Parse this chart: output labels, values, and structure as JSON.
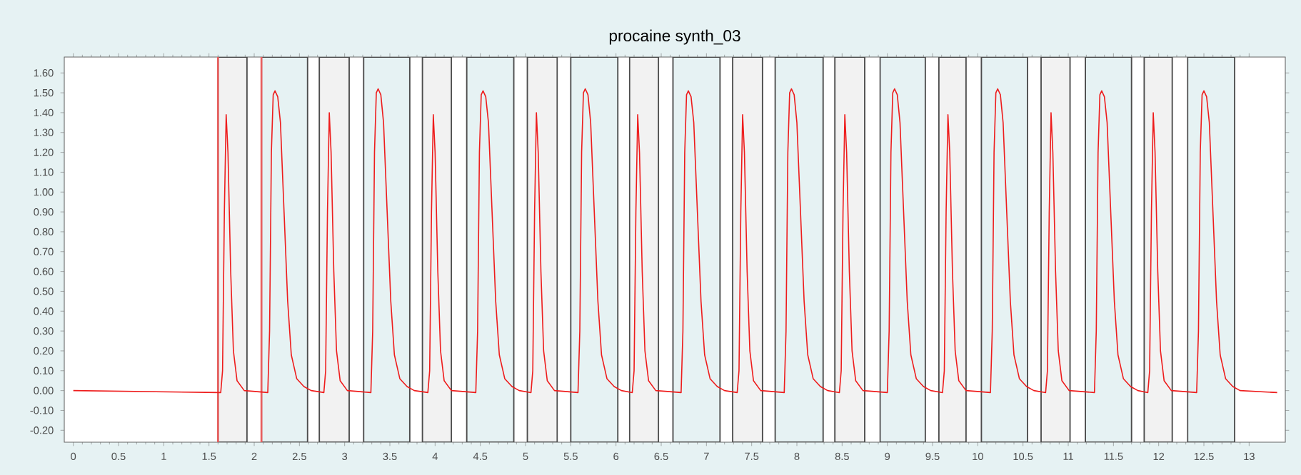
{
  "chart_data": {
    "type": "line",
    "title": "procaine synth_03",
    "xlim": [
      -0.1,
      13.4
    ],
    "ylim": [
      -0.26,
      1.68
    ],
    "xticks": [
      0,
      0.5,
      1,
      1.5,
      2,
      2.5,
      3,
      3.5,
      4,
      4.5,
      5,
      5.5,
      6,
      6.5,
      7,
      7.5,
      8,
      8.5,
      9,
      9.5,
      10,
      10.5,
      11,
      11.5,
      12,
      12.5,
      13
    ],
    "yticks": [
      {
        "value": -0.2,
        "label": "-0.20"
      },
      {
        "value": -0.1,
        "label": "-0.10"
      },
      {
        "value": 0,
        "label": "0.00"
      },
      {
        "value": 0.1,
        "label": "0.10"
      },
      {
        "value": 0.2,
        "label": "0.20"
      },
      {
        "value": 0.3,
        "label": "0.30"
      },
      {
        "value": 0.4,
        "label": "0.40"
      },
      {
        "value": 0.5,
        "label": "0.50"
      },
      {
        "value": 0.6,
        "label": "0.60"
      },
      {
        "value": 0.7,
        "label": "0.70"
      },
      {
        "value": 0.8,
        "label": "0.80"
      },
      {
        "value": 0.9,
        "label": "0.90"
      },
      {
        "value": 1.0,
        "label": "1.00"
      },
      {
        "value": 1.1,
        "label": "1.10"
      },
      {
        "value": 1.2,
        "label": "1.20"
      },
      {
        "value": 1.3,
        "label": "1.30"
      },
      {
        "value": 1.4,
        "label": "1.40"
      },
      {
        "value": 1.5,
        "label": "1.50"
      },
      {
        "value": 1.6,
        "label": "1.60"
      }
    ],
    "bands": [
      {
        "axis": "x",
        "from": 1.6,
        "to": 1.92,
        "color": "#f2f2f2"
      },
      {
        "axis": "x",
        "from": 2.08,
        "to": 2.59,
        "color": "#e6f2f3"
      },
      {
        "axis": "x",
        "from": 2.72,
        "to": 3.05,
        "color": "#f2f2f2"
      },
      {
        "axis": "x",
        "from": 3.21,
        "to": 3.72,
        "color": "#e6f2f3"
      },
      {
        "axis": "x",
        "from": 3.86,
        "to": 4.18,
        "color": "#f2f2f2"
      },
      {
        "axis": "x",
        "from": 4.35,
        "to": 4.87,
        "color": "#e6f2f3"
      },
      {
        "axis": "x",
        "from": 5.02,
        "to": 5.35,
        "color": "#f2f2f2"
      },
      {
        "axis": "x",
        "from": 5.5,
        "to": 6.02,
        "color": "#e6f2f3"
      },
      {
        "axis": "x",
        "from": 6.15,
        "to": 6.47,
        "color": "#f2f2f2"
      },
      {
        "axis": "x",
        "from": 6.63,
        "to": 7.15,
        "color": "#e6f2f3"
      },
      {
        "axis": "x",
        "from": 7.29,
        "to": 7.62,
        "color": "#f2f2f2"
      },
      {
        "axis": "x",
        "from": 7.76,
        "to": 8.29,
        "color": "#e6f2f3"
      },
      {
        "axis": "x",
        "from": 8.42,
        "to": 8.75,
        "color": "#f2f2f2"
      },
      {
        "axis": "x",
        "from": 8.92,
        "to": 9.42,
        "color": "#e6f2f3"
      },
      {
        "axis": "x",
        "from": 9.57,
        "to": 9.87,
        "color": "#f2f2f2"
      },
      {
        "axis": "x",
        "from": 10.04,
        "to": 10.55,
        "color": "#e6f2f3"
      },
      {
        "axis": "x",
        "from": 10.7,
        "to": 11.02,
        "color": "#f2f2f2"
      },
      {
        "axis": "x",
        "from": 11.19,
        "to": 11.7,
        "color": "#e6f2f3"
      },
      {
        "axis": "x",
        "from": 11.84,
        "to": 12.15,
        "color": "#f2f2f2"
      },
      {
        "axis": "x",
        "from": 12.32,
        "to": 12.84,
        "color": "#e6f2f3"
      }
    ],
    "ref_lines": [
      {
        "axis": "x",
        "value": 1.6,
        "color": "#e8605f"
      },
      {
        "axis": "x",
        "value": 2.08,
        "color": "#e8605f"
      }
    ],
    "series": [
      {
        "color": "#ee1c1c",
        "line_style": "solid",
        "x": [
          0,
          1.6,
          1.63,
          1.65,
          1.67,
          1.69,
          1.71,
          1.74,
          1.77,
          1.81,
          1.89,
          2.15,
          2.17,
          2.19,
          2.21,
          2.23,
          2.26,
          2.29,
          2.33,
          2.37,
          2.41,
          2.47,
          2.55,
          2.63,
          2.77,
          2.79,
          2.81,
          2.83,
          2.85,
          2.88,
          2.91,
          2.95,
          3.03,
          3.29,
          3.31,
          3.33,
          3.35,
          3.37,
          3.4,
          3.43,
          3.47,
          3.51,
          3.55,
          3.61,
          3.69,
          3.77,
          3.92,
          3.94,
          3.96,
          3.98,
          4.0,
          4.03,
          4.06,
          4.1,
          4.18,
          4.45,
          4.47,
          4.49,
          4.51,
          4.53,
          4.56,
          4.59,
          4.63,
          4.67,
          4.71,
          4.77,
          4.85,
          4.93,
          5.06,
          5.08,
          5.1,
          5.12,
          5.14,
          5.17,
          5.2,
          5.24,
          5.32,
          5.58,
          5.6,
          5.62,
          5.64,
          5.66,
          5.69,
          5.72,
          5.76,
          5.8,
          5.84,
          5.9,
          5.98,
          6.06,
          6.18,
          6.2,
          6.22,
          6.24,
          6.26,
          6.29,
          6.32,
          6.36,
          6.44,
          6.72,
          6.74,
          6.76,
          6.78,
          6.8,
          6.83,
          6.86,
          6.9,
          6.94,
          6.98,
          7.04,
          7.12,
          7.2,
          7.34,
          7.36,
          7.38,
          7.4,
          7.42,
          7.45,
          7.48,
          7.52,
          7.6,
          7.86,
          7.88,
          7.9,
          7.92,
          7.94,
          7.97,
          8.0,
          8.04,
          8.08,
          8.12,
          8.18,
          8.26,
          8.34,
          8.47,
          8.49,
          8.51,
          8.53,
          8.55,
          8.58,
          8.61,
          8.65,
          8.73,
          9.0,
          9.02,
          9.04,
          9.06,
          9.08,
          9.11,
          9.14,
          9.18,
          9.22,
          9.26,
          9.32,
          9.4,
          9.48,
          9.61,
          9.63,
          9.65,
          9.67,
          9.69,
          9.72,
          9.75,
          9.79,
          9.87,
          10.14,
          10.16,
          10.18,
          10.2,
          10.22,
          10.25,
          10.28,
          10.32,
          10.36,
          10.4,
          10.46,
          10.54,
          10.62,
          10.75,
          10.77,
          10.79,
          10.81,
          10.83,
          10.86,
          10.89,
          10.93,
          11.01,
          11.29,
          11.31,
          11.33,
          11.35,
          11.37,
          11.4,
          11.43,
          11.47,
          11.51,
          11.55,
          11.61,
          11.69,
          11.77,
          11.88,
          11.9,
          11.92,
          11.94,
          11.96,
          11.99,
          12.02,
          12.06,
          12.14,
          12.42,
          12.44,
          12.46,
          12.48,
          12.5,
          12.53,
          12.56,
          12.6,
          12.64,
          12.68,
          12.74,
          12.82,
          12.9,
          13.31
        ],
        "values": [
          0.0,
          -0.01,
          -0.01,
          0.1,
          0.9,
          1.39,
          1.2,
          0.6,
          0.2,
          0.05,
          0.0,
          -0.01,
          0.3,
          1.2,
          1.49,
          1.51,
          1.48,
          1.35,
          0.9,
          0.45,
          0.18,
          0.06,
          0.02,
          0.0,
          -0.01,
          0.1,
          0.9,
          1.4,
          1.2,
          0.6,
          0.2,
          0.05,
          0.0,
          -0.01,
          0.3,
          1.2,
          1.5,
          1.52,
          1.49,
          1.35,
          0.9,
          0.45,
          0.18,
          0.06,
          0.02,
          0.0,
          -0.01,
          0.1,
          0.9,
          1.39,
          1.2,
          0.6,
          0.2,
          0.05,
          0.0,
          -0.01,
          0.3,
          1.2,
          1.49,
          1.51,
          1.48,
          1.35,
          0.9,
          0.45,
          0.18,
          0.06,
          0.02,
          0.0,
          -0.01,
          0.1,
          0.9,
          1.4,
          1.2,
          0.6,
          0.2,
          0.05,
          0.0,
          -0.01,
          0.3,
          1.2,
          1.5,
          1.52,
          1.49,
          1.35,
          0.9,
          0.45,
          0.18,
          0.06,
          0.02,
          0.0,
          -0.01,
          0.1,
          0.9,
          1.39,
          1.2,
          0.6,
          0.2,
          0.05,
          0.0,
          -0.01,
          0.3,
          1.2,
          1.49,
          1.51,
          1.48,
          1.35,
          0.9,
          0.45,
          0.18,
          0.06,
          0.02,
          0.0,
          -0.01,
          0.1,
          0.9,
          1.39,
          1.2,
          0.6,
          0.2,
          0.05,
          0.0,
          -0.01,
          0.3,
          1.2,
          1.5,
          1.52,
          1.49,
          1.35,
          0.9,
          0.45,
          0.18,
          0.06,
          0.02,
          0.0,
          -0.01,
          0.1,
          0.9,
          1.39,
          1.2,
          0.6,
          0.2,
          0.05,
          0.0,
          -0.01,
          0.3,
          1.2,
          1.5,
          1.52,
          1.49,
          1.35,
          0.9,
          0.45,
          0.18,
          0.06,
          0.02,
          0.0,
          -0.01,
          0.1,
          0.9,
          1.39,
          1.2,
          0.6,
          0.2,
          0.05,
          0.0,
          -0.01,
          0.3,
          1.2,
          1.5,
          1.52,
          1.49,
          1.35,
          0.9,
          0.45,
          0.18,
          0.06,
          0.02,
          0.0,
          -0.01,
          0.1,
          0.9,
          1.4,
          1.2,
          0.6,
          0.2,
          0.05,
          0.0,
          -0.01,
          0.3,
          1.2,
          1.49,
          1.51,
          1.48,
          1.35,
          0.9,
          0.45,
          0.18,
          0.06,
          0.02,
          0.0,
          -0.01,
          0.1,
          0.9,
          1.4,
          1.2,
          0.6,
          0.2,
          0.05,
          0.0,
          -0.01,
          0.3,
          1.2,
          1.49,
          1.51,
          1.48,
          1.35,
          0.9,
          0.45,
          0.18,
          0.06,
          0.02,
          0.0,
          -0.01
        ]
      }
    ]
  }
}
